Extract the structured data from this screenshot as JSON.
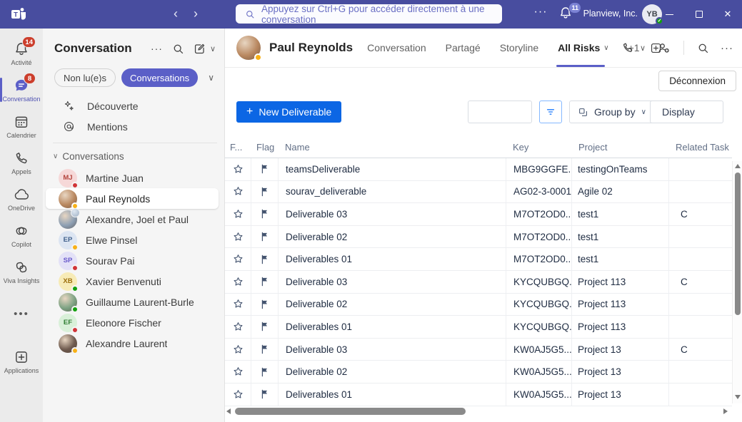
{
  "titlebar": {
    "search_placeholder": "Appuyez sur Ctrl+G pour accéder directement à une conversation",
    "org_name": "Planview, Inc.",
    "user_initials": "YB",
    "notifications_badge": "11"
  },
  "rail": {
    "items": [
      {
        "id": "activity",
        "label": "Activité",
        "icon": "bell-icon",
        "badge": "14",
        "selected": false
      },
      {
        "id": "chat",
        "label": "Conversation",
        "icon": "chat-icon",
        "badge": "8",
        "selected": true
      },
      {
        "id": "calendar",
        "label": "Calendrier",
        "icon": "calendar-icon",
        "badge": "",
        "selected": false
      },
      {
        "id": "calls",
        "label": "Appels",
        "icon": "phone-icon",
        "badge": "",
        "selected": false
      },
      {
        "id": "onedrive",
        "label": "OneDrive",
        "icon": "cloud-icon",
        "badge": "",
        "selected": false
      },
      {
        "id": "copilot",
        "label": "Copilot",
        "icon": "copilot-icon",
        "badge": "",
        "selected": false
      },
      {
        "id": "viva",
        "label": "Viva Insights",
        "icon": "viva-icon",
        "badge": "",
        "selected": false
      },
      {
        "id": "more-apps",
        "label": "",
        "icon": "more-icon",
        "badge": "",
        "selected": false
      },
      {
        "id": "applications",
        "label": "Applications",
        "icon": "apps-icon",
        "badge": "",
        "selected": false
      }
    ]
  },
  "sidebar": {
    "title": "Conversation",
    "filter_unread": "Non lu(e)s",
    "filter_conversations": "Conversations",
    "nav_items": [
      {
        "id": "discover",
        "label": "Découverte",
        "icon": "sparkle-icon"
      },
      {
        "id": "mentions",
        "label": "Mentions",
        "icon": "at-icon"
      }
    ],
    "section_label": "Conversations",
    "chats": [
      {
        "name": "Martine Juan",
        "initials": "MJ",
        "kind": "initials",
        "bg": "#f6d8d8",
        "fg": "#b3443c",
        "status": "busy",
        "selected": false
      },
      {
        "name": "Paul Reynolds",
        "initials": "",
        "kind": "photo",
        "bg": "#b98860",
        "fg": "",
        "status": "away",
        "selected": true
      },
      {
        "name": "Alexandre, Joel et Paul",
        "initials": "",
        "kind": "group",
        "bg": "#8d9fb3",
        "fg": "",
        "status": "",
        "selected": false
      },
      {
        "name": "Elwe Pinsel",
        "initials": "EP",
        "kind": "initials",
        "bg": "#dce5f2",
        "fg": "#41618c",
        "status": "away",
        "selected": false
      },
      {
        "name": "Sourav Pai",
        "initials": "SP",
        "kind": "initials",
        "bg": "#e3e1f7",
        "fg": "#6a5acb",
        "status": "busy",
        "selected": false
      },
      {
        "name": "Xavier Benvenuti",
        "initials": "XB",
        "kind": "initials",
        "bg": "#f7ebb6",
        "fg": "#9c6f0d",
        "status": "available",
        "selected": false
      },
      {
        "name": "Guillaume Laurent-Burle",
        "initials": "",
        "kind": "photo",
        "bg": "#7da283",
        "fg": "",
        "status": "available",
        "selected": false
      },
      {
        "name": "Eleonore Fischer",
        "initials": "EF",
        "kind": "initials",
        "bg": "#d9f0d9",
        "fg": "#2e7d32",
        "status": "busy",
        "selected": false
      },
      {
        "name": "Alexandre Laurent",
        "initials": "",
        "kind": "photo",
        "bg": "#6e5a4e",
        "fg": "",
        "status": "away",
        "selected": false
      }
    ]
  },
  "main": {
    "chat_name": "Paul Reynolds",
    "chat_status": "away",
    "tabs": [
      {
        "label": "Conversation",
        "active": false,
        "chevron": false
      },
      {
        "label": "Partagé",
        "active": false,
        "chevron": false
      },
      {
        "label": "Storyline",
        "active": false,
        "chevron": false
      },
      {
        "label": "All Risks",
        "active": true,
        "chevron": true
      },
      {
        "label": "+1",
        "active": false,
        "chevron": false
      }
    ],
    "disconnect_button": "Déconnexion",
    "toolbar": {
      "new_button": "New Deliverable",
      "group_by": "Group by",
      "display": "Display"
    },
    "table": {
      "columns": [
        "F...",
        "Flag",
        "Name",
        "Key",
        "Project",
        "Related Task"
      ],
      "rows": [
        {
          "name": "teamsDeliverable",
          "key": "MBG9GGFE...",
          "project": "testingOnTeams",
          "related_task": ""
        },
        {
          "name": "sourav_deliverable",
          "key": "AG02-3-0001",
          "project": "Agile 02",
          "related_task": ""
        },
        {
          "name": "Deliverable 03",
          "key": "M7OT2OD0...",
          "project": "test1",
          "related_task": "C"
        },
        {
          "name": "Deliverable 02",
          "key": "M7OT2OD0...",
          "project": "test1",
          "related_task": ""
        },
        {
          "name": "Deliverables 01",
          "key": "M7OT2OD0...",
          "project": "test1",
          "related_task": ""
        },
        {
          "name": "Deliverable 03",
          "key": "KYCQUBGQ...",
          "project": "Project 113",
          "related_task": "C"
        },
        {
          "name": "Deliverable 02",
          "key": "KYCQUBGQ...",
          "project": "Project 113",
          "related_task": ""
        },
        {
          "name": "Deliverables 01",
          "key": "KYCQUBGQ...",
          "project": "Project 113",
          "related_task": ""
        },
        {
          "name": "Deliverable 03",
          "key": "KW0AJ5G5...",
          "project": "Project 13",
          "related_task": "C"
        },
        {
          "name": "Deliverable 02",
          "key": "KW0AJ5G5...",
          "project": "Project 13",
          "related_task": ""
        },
        {
          "name": "Deliverables 01",
          "key": "KW0AJ5G5...",
          "project": "Project 13",
          "related_task": ""
        }
      ]
    }
  },
  "colors": {
    "titlebar": "#484d9f",
    "accent": "#5b5fc7",
    "badge_red": "#cc3e2c",
    "primary_blue": "#0c66e4",
    "filter_border": "#85b8ff",
    "status_available": "#13a10e",
    "status_busy": "#d13438",
    "status_away": "#f8b117"
  }
}
